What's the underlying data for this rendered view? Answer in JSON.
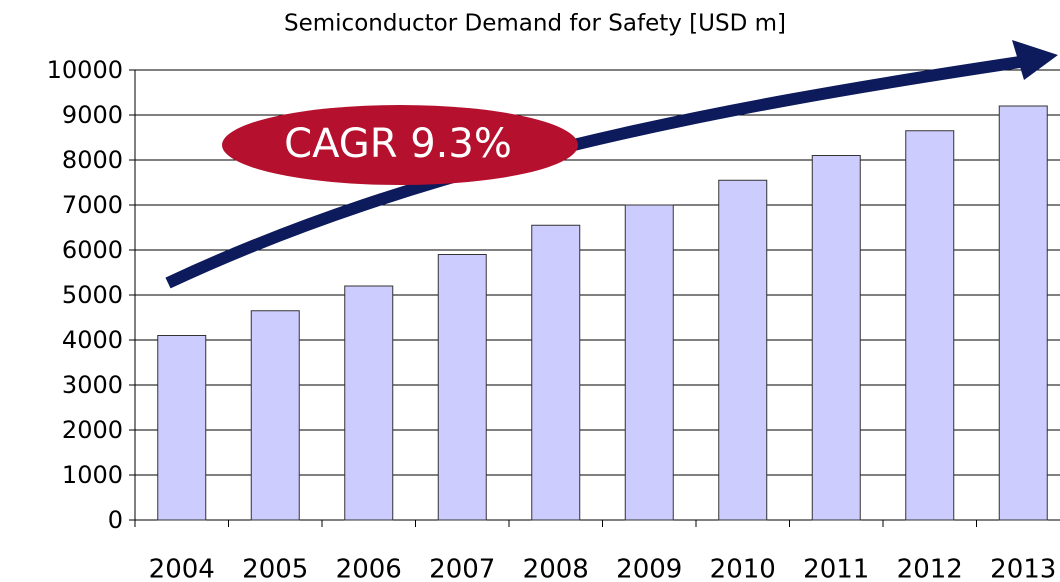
{
  "chart_data": {
    "type": "bar",
    "title": "Semiconductor Demand for Safety [USD m]",
    "categories": [
      "2004",
      "2005",
      "2006",
      "2007",
      "2008",
      "2009",
      "2010",
      "2011",
      "2012",
      "2013"
    ],
    "values": [
      4100,
      4650,
      5200,
      5900,
      6550,
      7000,
      7550,
      8100,
      8650,
      9200
    ],
    "color": "#ccccff",
    "ylim": [
      0,
      10000
    ],
    "yticks": [
      0,
      1000,
      2000,
      3000,
      4000,
      5000,
      6000,
      7000,
      8000,
      9000,
      10000
    ],
    "grid": true,
    "annotation": "CAGR 9.3%"
  }
}
